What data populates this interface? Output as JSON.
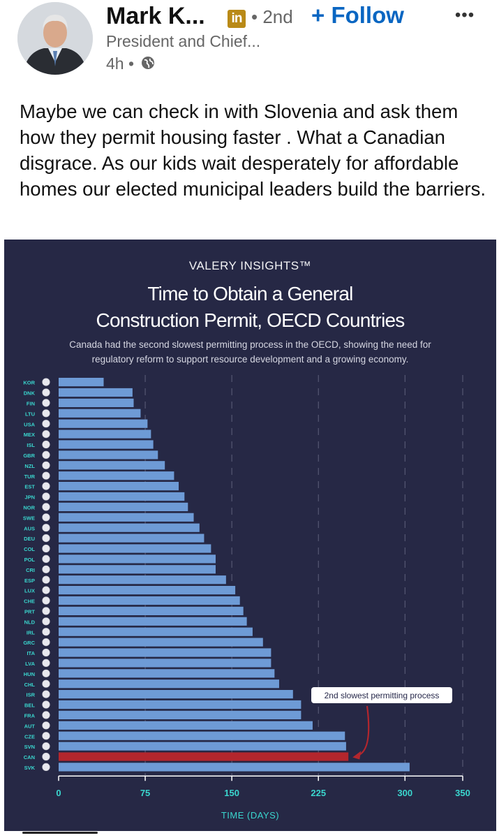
{
  "post": {
    "author_name": "Mark K...",
    "network_badge": "in",
    "degree": "• 2nd",
    "follow_label": "+ Follow",
    "more_label": "•••",
    "headline": "President and Chief...",
    "time": "4h •",
    "body": "Maybe we can check in with Slovenia and ask them how they permit housing faster . What a Canadian disgrace. As our kids wait desperately for affordable homes our elected municipal leaders build the barriers."
  },
  "figure": {
    "brand": "VALERY INSIGHTS™",
    "title_line1": "Time to Obtain a General",
    "title_line2": "Construction Permit, OECD Countries",
    "subtitle_line1": "Canada had the second slowest permitting process in the OECD, showing the need for",
    "subtitle_line2": "regulatory reform to support resource development and a growing economy.",
    "annotation": "2nd slowest permitting process",
    "colors": {
      "background": "#262845",
      "bar": "#6e9bd6",
      "highlight": "#b3262d",
      "axis_title": "#3ad6ce"
    }
  },
  "chart_data": {
    "type": "bar",
    "orientation": "horizontal",
    "title": "Time to Obtain a General Construction Permit, OECD Countries",
    "xlabel": "TIME (DAYS)",
    "ylabel": "",
    "xlim": [
      0,
      350
    ],
    "xticks": [
      0,
      75,
      150,
      225,
      300,
      350
    ],
    "highlight": "CAN",
    "categories": [
      "KOR",
      "DNK",
      "FIN",
      "LTU",
      "USA",
      "MEX",
      "ISL",
      "GBR",
      "NZL",
      "TUR",
      "EST",
      "JPN",
      "NOR",
      "SWE",
      "AUS",
      "DEU",
      "COL",
      "POL",
      "CRI",
      "ESP",
      "LUX",
      "CHE",
      "PRT",
      "NLD",
      "IRL",
      "GRC",
      "ITA",
      "LVA",
      "HUN",
      "CHL",
      "ISR",
      "BEL",
      "FRA",
      "AUT",
      "CZE",
      "SVN",
      "CAN",
      "SVK"
    ],
    "values": [
      39,
      64,
      65,
      71,
      77,
      80,
      82,
      86,
      92,
      100,
      104,
      109,
      112,
      117,
      122,
      126,
      132,
      136,
      136,
      145,
      153,
      157,
      160,
      163,
      168,
      177,
      184,
      184,
      187,
      191,
      203,
      210,
      210,
      220,
      248,
      249,
      251,
      304
    ]
  }
}
